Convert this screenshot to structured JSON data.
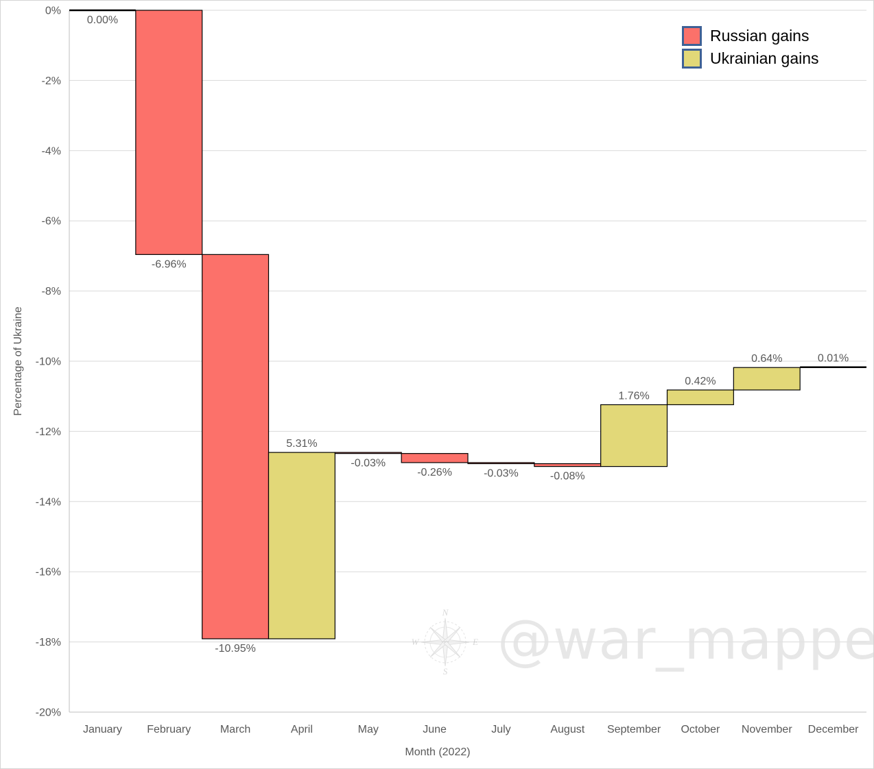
{
  "figure": {
    "watermark_text": "@war_mapper",
    "compass": {
      "north": "N",
      "east": "E",
      "south": "S",
      "west": "W"
    }
  },
  "legend": {
    "swatch_border_color": "#3e6196",
    "items": [
      {
        "label": "Russian gains",
        "color": "#fc716a"
      },
      {
        "label": "Ukrainian gains",
        "color": "#e2d878"
      }
    ]
  },
  "chart_data": {
    "type": "bar",
    "subtype": "waterfall",
    "title": "",
    "xlabel": "Month (2022)",
    "ylabel": "Percentage of Ukraine",
    "categories": [
      "January",
      "February",
      "March",
      "April",
      "May",
      "June",
      "July",
      "August",
      "September",
      "October",
      "November",
      "December"
    ],
    "values": [
      0.0,
      -6.96,
      -10.95,
      5.31,
      -0.03,
      -0.26,
      -0.03,
      -0.08,
      1.76,
      0.42,
      0.64,
      0.01
    ],
    "bar_labels": [
      "0.00%",
      "-6.96%",
      "-10.95%",
      "5.31%",
      "-0.03%",
      "-0.26%",
      "-0.03%",
      "-0.08%",
      "1.76%",
      "0.42%",
      "0.64%",
      "0.01%"
    ],
    "cumulative": [
      0.0,
      -6.96,
      -17.91,
      -12.6,
      -12.63,
      -12.89,
      -12.92,
      -13.0,
      -11.24,
      -10.82,
      -10.18,
      -10.17
    ],
    "ylim": [
      -20,
      0
    ],
    "ytick_labels": [
      "0%",
      "-2%",
      "-4%",
      "-6%",
      "-8%",
      "-10%",
      "-12%",
      "-14%",
      "-16%",
      "-18%",
      "-20%"
    ],
    "grid": true,
    "legend_position": "top-right",
    "legend_entries": [
      "Russian gains",
      "Ukrainian gains"
    ],
    "colors": {
      "russian_gains": "#fc716a",
      "ukrainian_gains": "#e2d878",
      "bar_border": "#000000",
      "gridline": "#d9d9d9",
      "axis_line": "#bfbfbf",
      "label_text": "#595959"
    }
  }
}
